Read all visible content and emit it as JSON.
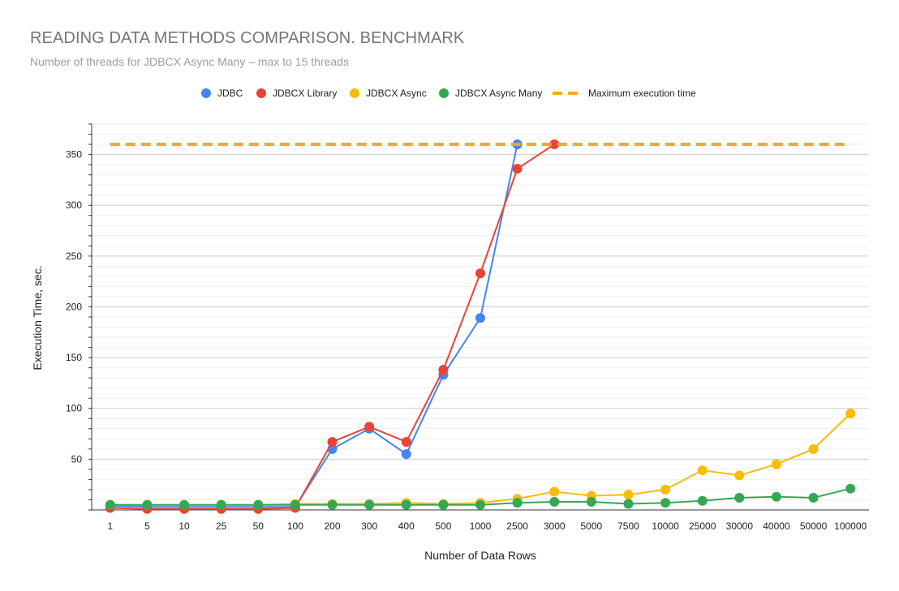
{
  "chart_data": {
    "type": "line",
    "title": "READING DATA METHODS COMPARISON. BENCHMARK",
    "subtitle": "Number of threads for JDBCX Async Many – max to 15 threads",
    "xlabel": "Number of Data Rows",
    "ylabel": "Execution Time, sec.",
    "ylim": [
      0,
      380
    ],
    "yticks": [
      50,
      100,
      150,
      200,
      250,
      300,
      350
    ],
    "grid": true,
    "legend_position": "top",
    "categories": [
      "1",
      "5",
      "10",
      "25",
      "50",
      "100",
      "200",
      "300",
      "400",
      "500",
      "1000",
      "2500",
      "3000",
      "5000",
      "7500",
      "10000",
      "25000",
      "30000",
      "40000",
      "50000",
      "100000"
    ],
    "series": [
      {
        "name": "JDBC",
        "color": "#4285f4",
        "values": [
          4,
          3,
          3,
          3,
          3,
          3,
          60,
          80,
          55,
          133,
          189,
          360,
          null,
          null,
          null,
          null,
          null,
          null,
          null,
          null,
          null
        ]
      },
      {
        "name": "JDBCX Library",
        "color": "#ea4335",
        "values": [
          2,
          1,
          1,
          1,
          1,
          2,
          67,
          82,
          67,
          138,
          233,
          336,
          360,
          null,
          null,
          null,
          null,
          null,
          null,
          null,
          null
        ]
      },
      {
        "name": "JDBCX Async",
        "color": "#fbbc04",
        "values": [
          5,
          5,
          5,
          5,
          5,
          6,
          6,
          6,
          7,
          6,
          7,
          11,
          18,
          14,
          15,
          20,
          39,
          34,
          45,
          60,
          95
        ]
      },
      {
        "name": "JDBCX Async Many",
        "color": "#34a853",
        "values": [
          5,
          5,
          5,
          5,
          5,
          5,
          5,
          5,
          5,
          5,
          5,
          7,
          8,
          8,
          6,
          7,
          9,
          12,
          13,
          12,
          21
        ]
      },
      {
        "name": "Maximum execution time",
        "color": "#f9a825",
        "dashed": true,
        "constant": 360
      }
    ]
  }
}
